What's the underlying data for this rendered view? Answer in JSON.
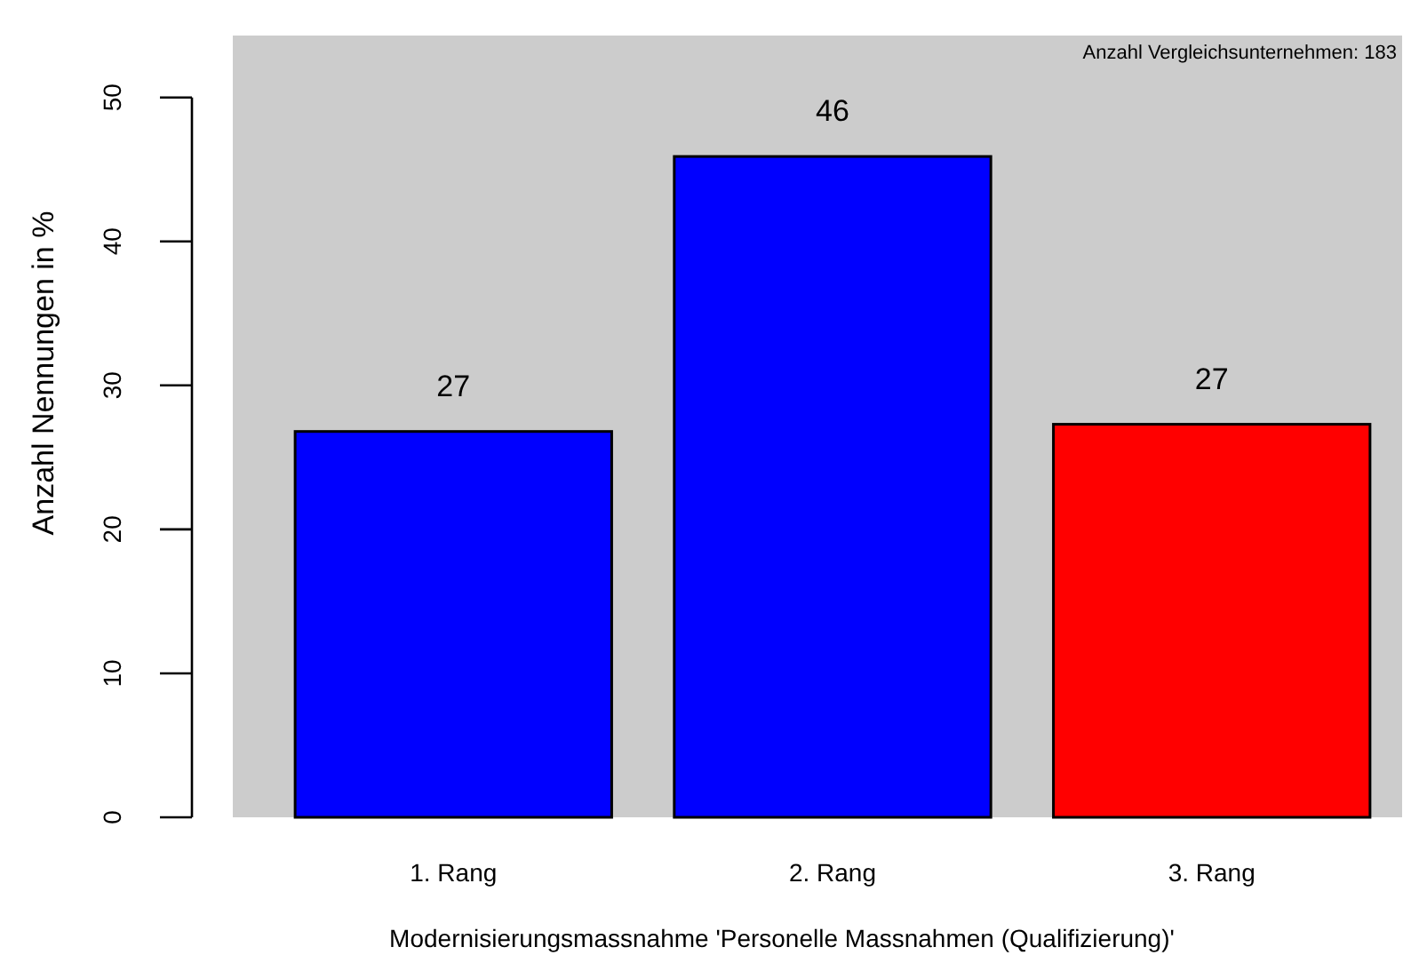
{
  "chart_data": {
    "type": "bar",
    "xlabel": "Modernisierungsmassnahme 'Personelle Massnahmen (Qualifizierung)'",
    "ylabel": "Anzahl Nennungen in %",
    "categories": [
      "1. Rang",
      "2. Rang",
      "3. Rang"
    ],
    "values": [
      26.8,
      45.9,
      27.3
    ],
    "colors": [
      "#0000ff",
      "#0000ff",
      "#ff0000"
    ],
    "value_labels": [
      "27",
      "46",
      "27"
    ],
    "ylim": [
      0,
      54.3
    ],
    "yticks": [
      0,
      10,
      20,
      30,
      40,
      50
    ],
    "annotations": [
      "Anzahl Vergleichsunternehmen: 183"
    ]
  }
}
